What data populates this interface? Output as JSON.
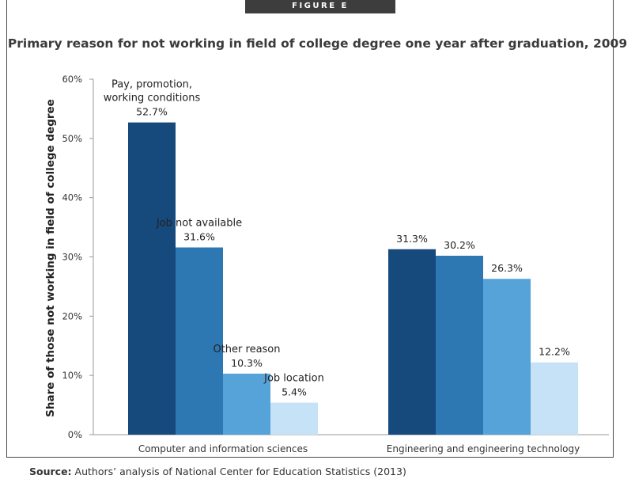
{
  "figure_label": "FIGURE E",
  "source": {
    "prefix": "Source:",
    "text": "Authors’ analysis of National Center for Education Statistics (2013)"
  },
  "colors": [
    "#174a7c",
    "#2d77b3",
    "#56a3da",
    "#c6e2f6"
  ],
  "chart_data": {
    "type": "bar",
    "title": "Primary reason for not working in field of college degree one year after graduation, 2009",
    "ylabel": "Share of those not working in field of college degree",
    "xlabel": "",
    "ylim": [
      0,
      60
    ],
    "yticks": [
      {
        "value": 0,
        "label": "0%"
      },
      {
        "value": 10,
        "label": "10%"
      },
      {
        "value": 20,
        "label": "20%"
      },
      {
        "value": 30,
        "label": "30%"
      },
      {
        "value": 40,
        "label": "40%"
      },
      {
        "value": 50,
        "label": "50%"
      },
      {
        "value": 60,
        "label": "60%"
      }
    ],
    "grid": false,
    "legend": "none",
    "categories": [
      "Computer and information sciences",
      "Engineering and engineering technology"
    ],
    "series": [
      {
        "name": "Pay, promotion, working conditions",
        "label_lines": [
          "Pay, promotion,",
          "working conditions"
        ],
        "values": [
          52.7,
          31.3
        ],
        "value_labels": [
          "52.7%",
          "31.3%"
        ]
      },
      {
        "name": "Job not available",
        "label_lines": [
          "Job not available"
        ],
        "values": [
          31.6,
          30.2
        ],
        "value_labels": [
          "31.6%",
          "30.2%"
        ]
      },
      {
        "name": "Other reason",
        "label_lines": [
          "Other reason"
        ],
        "values": [
          10.3,
          26.3
        ],
        "value_labels": [
          "10.3%",
          "26.3%"
        ]
      },
      {
        "name": "Job location",
        "label_lines": [
          "Job location"
        ],
        "values": [
          5.4,
          12.2
        ],
        "value_labels": [
          "5.4%",
          "12.2%"
        ]
      }
    ]
  }
}
